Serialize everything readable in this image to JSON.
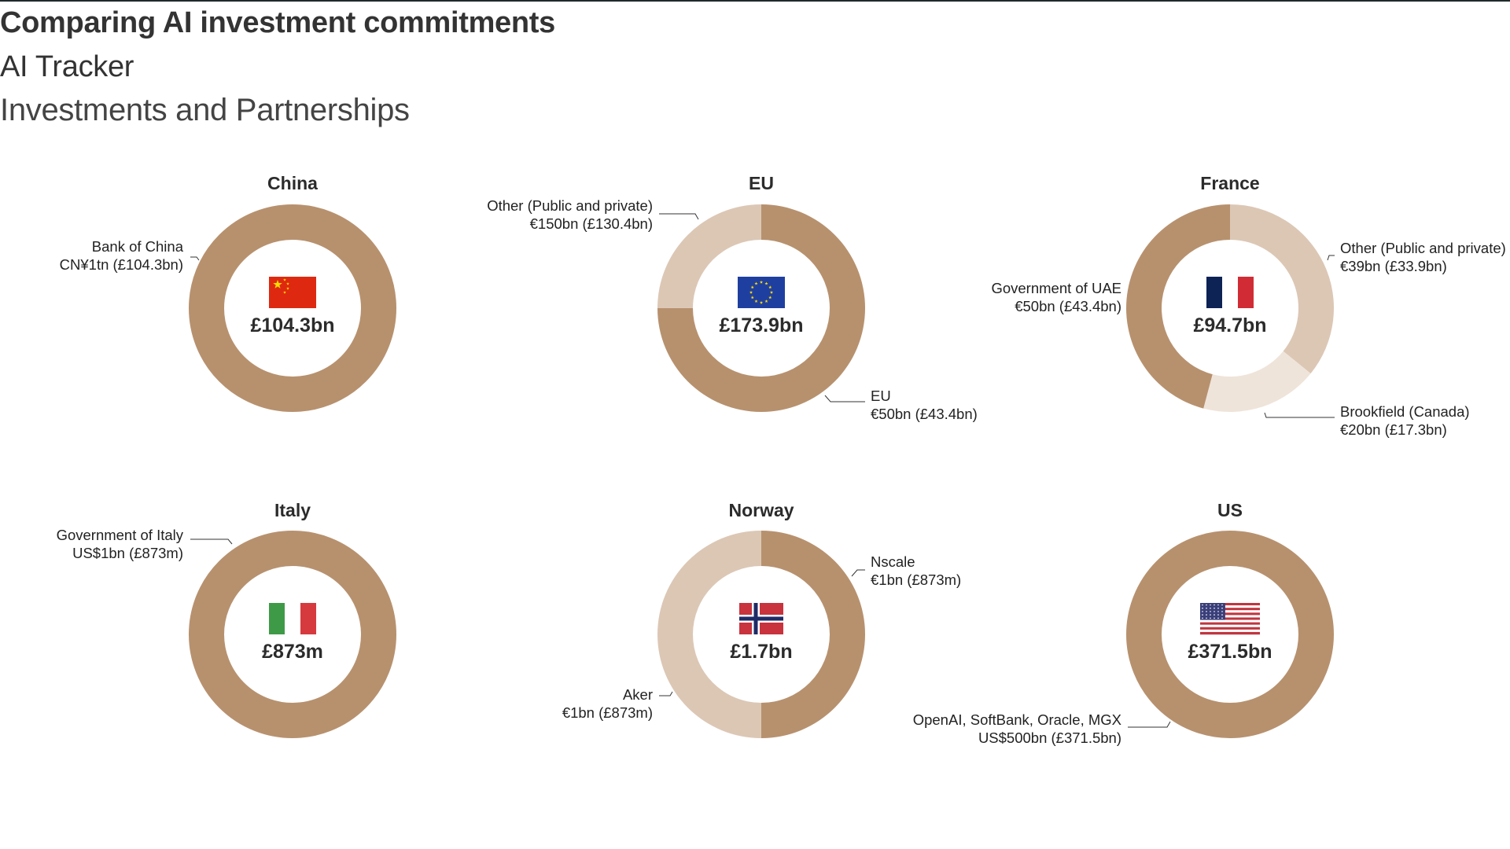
{
  "header": {
    "title": "Comparing AI investment commitments",
    "subtitle": "AI Tracker",
    "section": "Investments and Partnerships"
  },
  "palette": {
    "dark": "#b7916e",
    "medium": "#dcc7b5",
    "light": "#efe4da"
  },
  "chart_data": [
    {
      "type": "donut",
      "title": "China",
      "total_label": "£104.3bn",
      "flag": "china-flag",
      "slices": [
        {
          "name": "Bank of China",
          "amount": "CN¥1tn (£104.3bn)",
          "value_gbp_bn": 104.3,
          "color": "#b7916e"
        }
      ]
    },
    {
      "type": "donut",
      "title": "EU",
      "total_label": "£173.9bn",
      "flag": "eu-flag",
      "slices": [
        {
          "name": "Other (Public and private)",
          "amount": "€150bn (£130.4bn)",
          "value_gbp_bn": 130.4,
          "color": "#b7916e"
        },
        {
          "name": "EU",
          "amount": "€50bn (£43.4bn)",
          "value_gbp_bn": 43.4,
          "color": "#dcc7b5"
        }
      ]
    },
    {
      "type": "donut",
      "title": "France",
      "total_label": "£94.7bn",
      "flag": "france-flag",
      "slices": [
        {
          "name": "Other (Public and private)",
          "amount": "€39bn (£33.9bn)",
          "value_gbp_bn": 33.9,
          "color": "#dcc7b5"
        },
        {
          "name": "Brookfield (Canada)",
          "amount": "€20bn (£17.3bn)",
          "value_gbp_bn": 17.3,
          "color": "#efe4da"
        },
        {
          "name": "Government of UAE",
          "amount": "€50bn (£43.4bn)",
          "value_gbp_bn": 43.4,
          "color": "#b7916e"
        }
      ]
    },
    {
      "type": "donut",
      "title": "Italy",
      "total_label": "£873m",
      "flag": "italy-flag",
      "slices": [
        {
          "name": "Government of Italy",
          "amount": "US$1bn (£873m)",
          "value_gbp_bn": 0.873,
          "color": "#b7916e"
        }
      ]
    },
    {
      "type": "donut",
      "title": "Norway",
      "total_label": "£1.7bn",
      "flag": "norway-flag",
      "slices": [
        {
          "name": "Nscale",
          "amount": "€1bn (£873m)",
          "value_gbp_bn": 0.873,
          "color": "#b7916e"
        },
        {
          "name": "Aker",
          "amount": "€1bn (£873m)",
          "value_gbp_bn": 0.873,
          "color": "#dcc7b5"
        }
      ]
    },
    {
      "type": "donut",
      "title": "US",
      "total_label": "£371.5bn",
      "flag": "us-flag",
      "slices": [
        {
          "name": "OpenAI, SoftBank, Oracle, MGX",
          "amount": "US$500bn (£371.5bn)",
          "value_gbp_bn": 371.5,
          "color": "#b7916e"
        }
      ]
    }
  ]
}
